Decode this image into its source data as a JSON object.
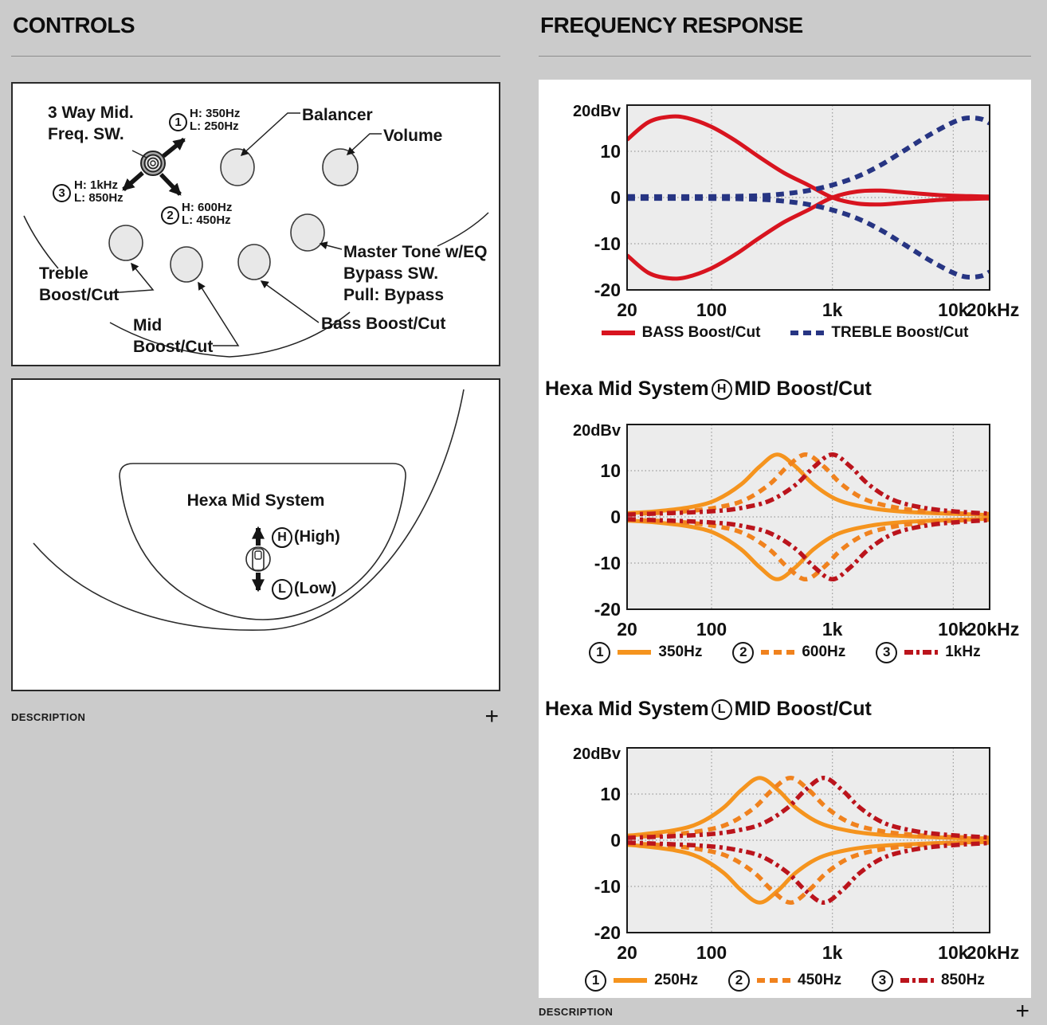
{
  "palette": {
    "background": "#cbcbcb",
    "panel": "#ffffff",
    "text": "#111111",
    "plot_bg": "#ececec",
    "plot_border": "#1a1a1a",
    "grid": "#9c9c9c",
    "red": "#d8141f",
    "navy": "#273583",
    "orange": "#f5941e",
    "maroon": "#bb141c"
  },
  "left": {
    "title": "CONTROLS",
    "description": {
      "label": "DESCRIPTION",
      "toggle": "+"
    },
    "controls_diagram": {
      "mid_freq_switch_label": [
        "3 Way Mid.",
        "Freq. SW."
      ],
      "positions": [
        {
          "num": "1",
          "line1": "H: 350Hz",
          "line2": "L: 250Hz"
        },
        {
          "num": "2",
          "line1": "H: 600Hz",
          "line2": "L: 450Hz"
        },
        {
          "num": "3",
          "line1": "H: 1kHz",
          "line2": "L: 850Hz"
        }
      ],
      "balancer": "Balancer",
      "volume": "Volume",
      "treble": [
        "Treble",
        "Boost/Cut"
      ],
      "mid": [
        "Mid",
        "Boost/Cut"
      ],
      "bass": "Bass Boost/Cut",
      "master": [
        "Master Tone w/EQ",
        "Bypass SW.",
        "Pull: Bypass"
      ]
    },
    "hexa_diagram": {
      "title": "Hexa Mid System",
      "high_letter": "H",
      "high_label": "(High)",
      "low_letter": "L",
      "low_label": "(Low)"
    }
  },
  "right": {
    "title": "FREQUENCY RESPONSE",
    "description": {
      "label": "DESCRIPTION",
      "toggle": "+"
    }
  },
  "chart_data": [
    {
      "type": "line",
      "x_scale": "log",
      "xlim": [
        20,
        20000
      ],
      "ylim": [
        -20,
        20
      ],
      "y_unit": "dBv",
      "grid_on": true,
      "legend_position": "bottom",
      "mirror_boost_cut": true,
      "y_ticks": [
        {
          "v": 20,
          "label": "20dBv"
        },
        {
          "v": 10,
          "label": "10"
        },
        {
          "v": 0,
          "label": "0"
        },
        {
          "v": -10,
          "label": "-10"
        },
        {
          "v": -20,
          "label": "-20"
        }
      ],
      "x_ticks": [
        {
          "f": 20,
          "label": "20"
        },
        {
          "f": 100,
          "label": "100"
        },
        {
          "f": 1000,
          "label": "1k"
        },
        {
          "f": 10000,
          "label": "10k"
        },
        {
          "f": 20000,
          "label": "20kHz",
          "dx": 4
        }
      ],
      "grid": {
        "h": [
          10,
          0,
          -10
        ],
        "v": [
          100,
          1000,
          10000
        ]
      },
      "series": [
        {
          "name": "BASS Boost/Cut",
          "style": "solid",
          "color": "#d8141f",
          "width": 5,
          "points": [
            [
              20,
              12.5
            ],
            [
              30,
              16.3
            ],
            [
              45,
              17.5
            ],
            [
              63,
              17.2
            ],
            [
              100,
              15.3
            ],
            [
              160,
              12.2
            ],
            [
              250,
              8.7
            ],
            [
              400,
              5.3
            ],
            [
              630,
              2.7
            ],
            [
              1000,
              0
            ],
            [
              1600,
              -1.3
            ],
            [
              2500,
              -1.5
            ],
            [
              4000,
              -1.1
            ],
            [
              8000,
              -0.5
            ],
            [
              14000,
              -0.3
            ],
            [
              20000,
              -0.2
            ]
          ]
        },
        {
          "name": "TREBLE Boost/Cut",
          "style": "dashed",
          "color": "#273583",
          "width": 6,
          "points": [
            [
              20,
              0.2
            ],
            [
              100,
              0.2
            ],
            [
              250,
              0.4
            ],
            [
              400,
              0.8
            ],
            [
              630,
              1.5
            ],
            [
              1000,
              2.7
            ],
            [
              1600,
              4.5
            ],
            [
              2500,
              7.0
            ],
            [
              4000,
              10.3
            ],
            [
              6300,
              13.5
            ],
            [
              10000,
              16.3
            ],
            [
              13000,
              17.2
            ],
            [
              17000,
              17.0
            ],
            [
              20000,
              16.1
            ]
          ]
        }
      ]
    },
    {
      "type": "line",
      "heading": {
        "pre": "Hexa Mid System",
        "circle": "H",
        "post": "MID Boost/Cut"
      },
      "x_scale": "log",
      "xlim": [
        20,
        20000
      ],
      "ylim": [
        -20,
        20
      ],
      "y_unit": "dBv",
      "grid_on": true,
      "legend_position": "bottom",
      "mirror_boost_cut": true,
      "y_ticks": [
        {
          "v": 20,
          "label": "20dBv"
        },
        {
          "v": 10,
          "label": "10"
        },
        {
          "v": 0,
          "label": "0"
        },
        {
          "v": -10,
          "label": "-10"
        },
        {
          "v": -20,
          "label": "-20"
        }
      ],
      "x_ticks": [
        {
          "f": 20,
          "label": "20"
        },
        {
          "f": 100,
          "label": "100"
        },
        {
          "f": 1000,
          "label": "1k"
        },
        {
          "f": 10000,
          "label": "10k"
        },
        {
          "f": 20000,
          "label": "20kHz",
          "dx": 4
        }
      ],
      "grid": {
        "h": [
          10,
          0,
          -10
        ],
        "v": [
          100,
          1000,
          10000
        ]
      },
      "series": [
        {
          "name": "350Hz",
          "num": "1",
          "style": "solid",
          "color": "#f5941e",
          "width": 5,
          "points": [
            [
              20,
              0.8
            ],
            [
              35,
              1.2
            ],
            [
              70,
              2.2
            ],
            [
              110,
              3.7
            ],
            [
              175,
              7.0
            ],
            [
              250,
              10.9
            ],
            [
              350,
              13.5
            ],
            [
              495,
              10.9
            ],
            [
              700,
              7.0
            ],
            [
              1100,
              3.7
            ],
            [
              1970,
              2.0
            ],
            [
              3500,
              1.2
            ],
            [
              7000,
              0.8
            ],
            [
              12000,
              0.6
            ],
            [
              20000,
              0.4
            ]
          ]
        },
        {
          "name": "600Hz",
          "num": "2",
          "style": "dashed",
          "color": "#f0821e",
          "width": 5.5,
          "points": [
            [
              20,
              0.6
            ],
            [
              60,
              1.2
            ],
            [
              120,
              2.2
            ],
            [
              190,
              3.7
            ],
            [
              300,
              7.0
            ],
            [
              425,
              10.9
            ],
            [
              600,
              13.5
            ],
            [
              850,
              10.9
            ],
            [
              1200,
              7.0
            ],
            [
              1900,
              3.7
            ],
            [
              3400,
              2.0
            ],
            [
              6000,
              1.2
            ],
            [
              12000,
              0.7
            ],
            [
              20000,
              0.6
            ]
          ]
        },
        {
          "name": "1kHz",
          "num": "3",
          "style": "dashdot",
          "color": "#bb141c",
          "width": 5.5,
          "points": [
            [
              20,
              0.5
            ],
            [
              100,
              1.2
            ],
            [
              200,
              2.2
            ],
            [
              316,
              3.7
            ],
            [
              500,
              7.0
            ],
            [
              710,
              10.9
            ],
            [
              1000,
              13.5
            ],
            [
              1410,
              10.9
            ],
            [
              2000,
              7.0
            ],
            [
              3160,
              3.7
            ],
            [
              5600,
              2.0
            ],
            [
              10000,
              1.2
            ],
            [
              20000,
              0.7
            ]
          ]
        }
      ]
    },
    {
      "type": "line",
      "heading": {
        "pre": "Hexa Mid System",
        "circle": "L",
        "post": "MID Boost/Cut"
      },
      "x_scale": "log",
      "xlim": [
        20,
        20000
      ],
      "ylim": [
        -20,
        20
      ],
      "y_unit": "dBv",
      "grid_on": true,
      "legend_position": "bottom",
      "mirror_boost_cut": true,
      "y_ticks": [
        {
          "v": 20,
          "label": "20dBv"
        },
        {
          "v": 10,
          "label": "10"
        },
        {
          "v": 0,
          "label": "0"
        },
        {
          "v": -10,
          "label": "-10"
        },
        {
          "v": -20,
          "label": "-20"
        }
      ],
      "x_ticks": [
        {
          "f": 20,
          "label": "20"
        },
        {
          "f": 100,
          "label": "100"
        },
        {
          "f": 1000,
          "label": "1k"
        },
        {
          "f": 10000,
          "label": "10k"
        },
        {
          "f": 20000,
          "label": "20kHz",
          "dx": 4
        }
      ],
      "grid": {
        "h": [
          10,
          0,
          -10
        ],
        "v": [
          100,
          1000,
          10000
        ]
      },
      "series": [
        {
          "name": "250Hz",
          "num": "1",
          "style": "solid",
          "color": "#f5941e",
          "width": 5,
          "points": [
            [
              20,
              1.0
            ],
            [
              25,
              1.2
            ],
            [
              50,
              2.2
            ],
            [
              79,
              3.7
            ],
            [
              125,
              7.0
            ],
            [
              177,
              10.9
            ],
            [
              250,
              13.5
            ],
            [
              354,
              10.9
            ],
            [
              500,
              7.0
            ],
            [
              790,
              3.7
            ],
            [
              1400,
              2.0
            ],
            [
              2500,
              1.2
            ],
            [
              5000,
              0.8
            ],
            [
              10000,
              0.5
            ],
            [
              20000,
              0.4
            ]
          ]
        },
        {
          "name": "450Hz",
          "num": "2",
          "style": "dashed",
          "color": "#f0821e",
          "width": 5.5,
          "points": [
            [
              20,
              0.7
            ],
            [
              45,
              1.2
            ],
            [
              90,
              2.2
            ],
            [
              142,
              3.7
            ],
            [
              225,
              7.0
            ],
            [
              318,
              10.9
            ],
            [
              450,
              13.5
            ],
            [
              636,
              10.9
            ],
            [
              900,
              7.0
            ],
            [
              1420,
              3.7
            ],
            [
              2530,
              2.0
            ],
            [
              4500,
              1.2
            ],
            [
              9000,
              0.7
            ],
            [
              20000,
              0.5
            ]
          ]
        },
        {
          "name": "850Hz",
          "num": "3",
          "style": "dashdot",
          "color": "#bb141c",
          "width": 5.5,
          "points": [
            [
              20,
              0.5
            ],
            [
              85,
              1.2
            ],
            [
              170,
              2.2
            ],
            [
              269,
              3.7
            ],
            [
              425,
              7.0
            ],
            [
              600,
              10.9
            ],
            [
              850,
              13.5
            ],
            [
              1200,
              10.9
            ],
            [
              1700,
              7.0
            ],
            [
              2690,
              3.7
            ],
            [
              4780,
              2.0
            ],
            [
              8500,
              1.2
            ],
            [
              17000,
              0.7
            ],
            [
              20000,
              0.6
            ]
          ]
        }
      ]
    }
  ]
}
